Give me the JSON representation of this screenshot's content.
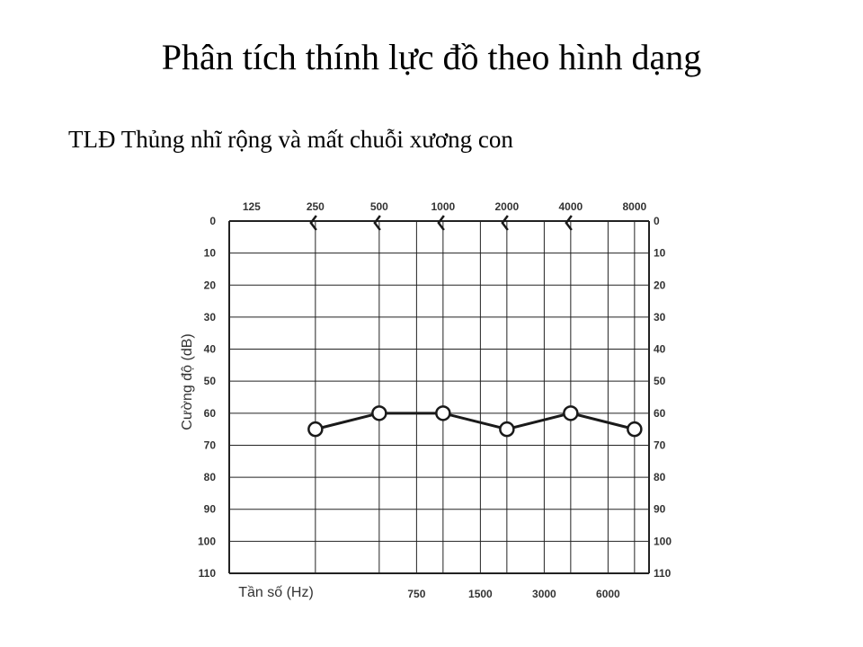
{
  "slide": {
    "title": "Phân tích thính lực đồ theo hình dạng",
    "subtitle": "TLĐ Thủng nhĩ rộng và mất chuỗi xương con"
  },
  "chart_data": {
    "type": "line",
    "chart_kind": "audiogram",
    "title": "",
    "xlabel": "Tần số (Hz)",
    "ylabel": "Cường độ (dB)",
    "x_ticks_top": [
      "125",
      "250",
      "500",
      "1000",
      "2000",
      "4000",
      "8000"
    ],
    "x_ticks_bottom": [
      "750",
      "1500",
      "3000",
      "6000"
    ],
    "y_ticks": [
      "0",
      "10",
      "20",
      "30",
      "40",
      "50",
      "60",
      "70",
      "80",
      "90",
      "100",
      "110"
    ],
    "ylim": [
      0,
      110
    ],
    "y_inverted": true,
    "x_scale": "log2 (octaves)",
    "grid": true,
    "series": [
      {
        "marker": "circle",
        "x": [
          250,
          500,
          1000,
          2000,
          4000,
          8000
        ],
        "y": [
          65,
          60,
          60,
          65,
          60,
          65
        ]
      },
      {
        "marker": "bone-conduction-left-bracket",
        "x": [
          250,
          500,
          1000,
          2000,
          4000
        ],
        "y": [
          0,
          0,
          0,
          0,
          0
        ]
      }
    ],
    "colors": {
      "line": "#1a1a1a",
      "grid": "#222222",
      "text": "#333333",
      "marker_fill": "#ffffff"
    }
  }
}
